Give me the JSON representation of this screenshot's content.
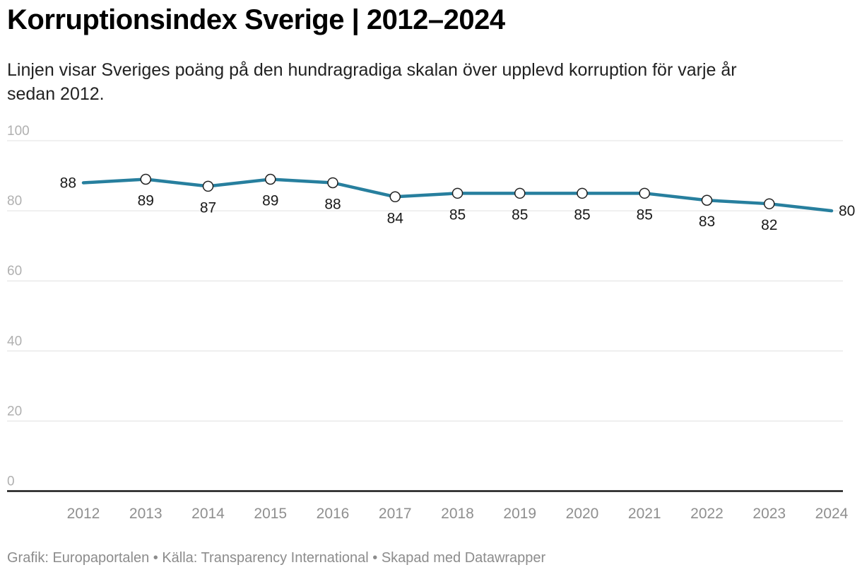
{
  "header": {
    "title": "Korruptionsindex Sverige | 2012–2024",
    "subtitle_lines": [
      "Linjen visar Sveriges poäng på den hundragradiga skalan över upplevd korruption för varje år",
      "sedan 2012."
    ]
  },
  "footer": {
    "text": "Grafik: Europaportalen • Källa: Transparency International • Skapad med Datawrapper"
  },
  "chart_data": {
    "type": "line",
    "title": "Korruptionsindex Sverige | 2012–2024",
    "x": [
      2012,
      2013,
      2014,
      2015,
      2016,
      2017,
      2018,
      2019,
      2020,
      2021,
      2022,
      2023,
      2024
    ],
    "series": [
      {
        "name": "Sverige",
        "values": [
          88,
          89,
          87,
          89,
          88,
          84,
          85,
          85,
          85,
          85,
          83,
          82,
          80
        ]
      }
    ],
    "ylim": [
      0,
      100
    ],
    "yticks": [
      0,
      20,
      40,
      60,
      80,
      100
    ],
    "grid": "horizontal",
    "legend": "none",
    "value_labels_shown": true,
    "marker_style": "open-circle",
    "colors": {
      "line": "#277f9e",
      "marker_fill": "#ffffff",
      "marker_stroke": "#222222",
      "gridline": "#e0e0e0",
      "axis_line": "#1a1a1a",
      "y_tick_label": "#b0b0b0",
      "x_tick_label": "#8f8f8f",
      "value_label": "#1a1a1a"
    }
  }
}
